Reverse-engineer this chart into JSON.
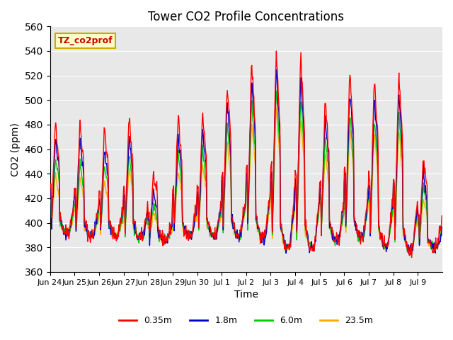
{
  "title": "Tower CO2 Profile Concentrations",
  "xlabel": "Time",
  "ylabel": "CO2 (ppm)",
  "ylim": [
    360,
    560
  ],
  "yticks": [
    360,
    380,
    400,
    420,
    440,
    460,
    480,
    500,
    520,
    540,
    560
  ],
  "bg_color": "#e8e8e8",
  "legend_label": "TZ_co2prof",
  "legend_text_color": "#cc0000",
  "legend_bg": "#ffffcc",
  "legend_border": "#ccaa00",
  "series_colors": [
    "#ff0000",
    "#0000cc",
    "#00cc00",
    "#ffaa00"
  ],
  "series_labels": [
    "0.35m",
    "1.8m",
    "6.0m",
    "23.5m"
  ],
  "tick_labels": [
    "Jun 24",
    "Jun 25",
    "Jun 26",
    "Jun 27",
    "Jun 28",
    "Jun 29",
    "Jun 30",
    "Jul 1",
    "Jul 2",
    "Jul 3",
    "Jul 4",
    "Jul 5",
    "Jul 6",
    "Jul 7",
    "Jul 8",
    "Jul 9"
  ],
  "n_points_per_day": 48,
  "n_days": 16,
  "day_peaks_035": [
    485,
    483,
    478,
    487,
    440,
    487,
    490,
    515,
    533,
    544,
    538,
    502,
    526,
    521,
    524,
    455
  ],
  "day_peaks_18": [
    470,
    468,
    462,
    472,
    425,
    472,
    476,
    500,
    518,
    528,
    522,
    488,
    508,
    505,
    508,
    442
  ],
  "day_peaks_60": [
    455,
    450,
    448,
    458,
    415,
    458,
    462,
    483,
    500,
    510,
    504,
    472,
    492,
    488,
    492,
    430
  ],
  "day_peaks_235": [
    440,
    438,
    435,
    445,
    408,
    444,
    448,
    468,
    482,
    495,
    488,
    458,
    478,
    474,
    478,
    420
  ],
  "day_mins": [
    393,
    390,
    390,
    388,
    387,
    390,
    390,
    390,
    388,
    380,
    380,
    386,
    388,
    382,
    378,
    380
  ]
}
